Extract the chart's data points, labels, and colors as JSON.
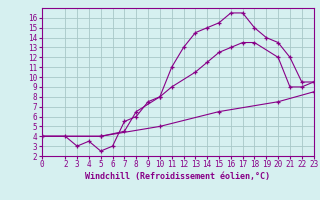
{
  "xlabel": "Windchill (Refroidissement éolien,°C)",
  "bg_color": "#d6f0f0",
  "grid_color": "#a8c8c8",
  "line_color": "#880088",
  "spine_color": "#880088",
  "xlim": [
    0,
    23
  ],
  "ylim": [
    2,
    17
  ],
  "xticks": [
    0,
    2,
    3,
    4,
    5,
    6,
    7,
    8,
    9,
    10,
    11,
    12,
    13,
    14,
    15,
    16,
    17,
    18,
    19,
    20,
    21,
    22,
    23
  ],
  "yticks": [
    2,
    3,
    4,
    5,
    6,
    7,
    8,
    9,
    10,
    11,
    12,
    13,
    14,
    15,
    16
  ],
  "line1_x": [
    0,
    2,
    3,
    4,
    5,
    6,
    7,
    8,
    9,
    10,
    11,
    12,
    13,
    14,
    15,
    16,
    17,
    18,
    19,
    20,
    21,
    22,
    23
  ],
  "line1_y": [
    4,
    4,
    3,
    3.5,
    2.5,
    3,
    5.5,
    6.0,
    7.5,
    8.0,
    11.0,
    13.0,
    14.5,
    15.0,
    15.5,
    16.5,
    16.5,
    15.0,
    14.0,
    13.5,
    12.0,
    9.5,
    9.5
  ],
  "line2_x": [
    0,
    5,
    7,
    8,
    10,
    11,
    13,
    14,
    15,
    16,
    17,
    18,
    20,
    21,
    22,
    23
  ],
  "line2_y": [
    4,
    4,
    4.5,
    6.5,
    8.0,
    9.0,
    10.5,
    11.5,
    12.5,
    13.0,
    13.5,
    13.5,
    12.0,
    9.0,
    9.0,
    9.5
  ],
  "line3_x": [
    0,
    5,
    10,
    15,
    20,
    23
  ],
  "line3_y": [
    4,
    4,
    5,
    6.5,
    7.5,
    8.5
  ],
  "tick_fontsize": 5.5,
  "xlabel_fontsize": 6,
  "marker_size": 3,
  "linewidth": 0.8
}
